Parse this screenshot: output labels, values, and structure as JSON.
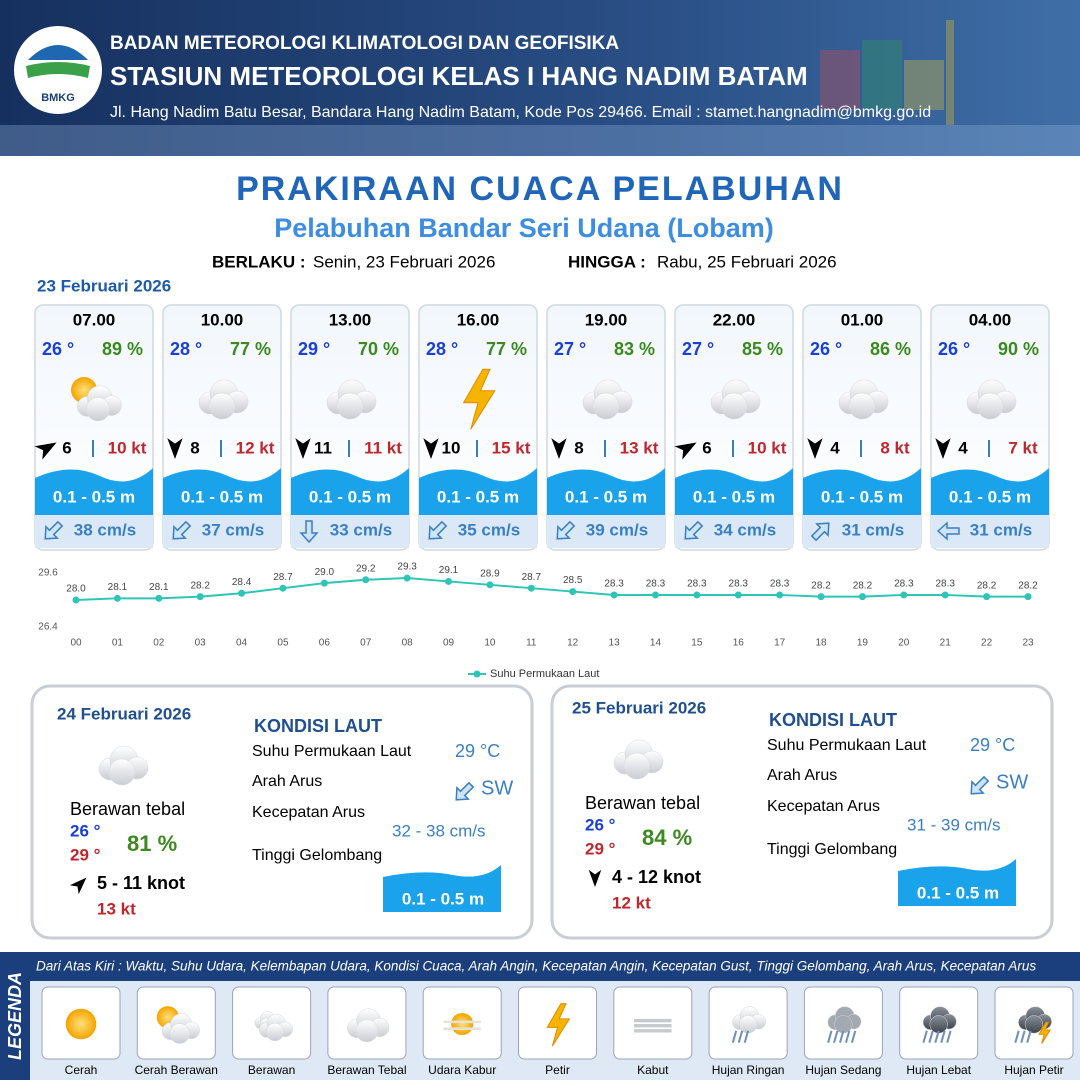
{
  "header": {
    "logo_text": "BMKG",
    "org": "BADAN METEOROLOGI KLIMATOLOGI DAN GEOFISIKA",
    "station": "STASIUN METEOROLOGI KELAS I HANG NADIM BATAM",
    "address": "Jl. Hang Nadim Batu Besar, Bandara Hang Nadim Batam, Kode Pos 29466. Email : stamet.hangnadim@bmkg.go.id"
  },
  "title": "PRAKIRAAN CUACA PELABUHAN",
  "subtitle": "Pelabuhan Bandar Seri Udana (Lobam)",
  "validity": {
    "from_label": "BERLAKU :",
    "from": "Senin, 23 Februari 2026",
    "to_label": "HINGGA :",
    "to": "Rabu, 25 Februari 2026"
  },
  "date": "23 Februari 2026",
  "cards": [
    {
      "time": "07.00",
      "temp": "26 °",
      "humidity": "89 %",
      "wind": "6",
      "gust": "10 kt",
      "wave": "0.1 - 0.5 m",
      "current": "38 cm/s"
    },
    {
      "time": "10.00",
      "temp": "28 °",
      "humidity": "77 %",
      "wind": "8",
      "gust": "12 kt",
      "wave": "0.1 - 0.5 m",
      "current": "37 cm/s"
    },
    {
      "time": "13.00",
      "temp": "29 °",
      "humidity": "70 %",
      "wind": "11",
      "gust": "11 kt",
      "wave": "0.1 - 0.5 m",
      "current": "33 cm/s"
    },
    {
      "time": "16.00",
      "temp": "28 °",
      "humidity": "77 %",
      "wind": "10",
      "gust": "15 kt",
      "wave": "0.1 - 0.5 m",
      "current": "35 cm/s"
    },
    {
      "time": "19.00",
      "temp": "27 °",
      "humidity": "83 %",
      "wind": "8",
      "gust": "13 kt",
      "wave": "0.1 - 0.5 m",
      "current": "39 cm/s"
    },
    {
      "time": "22.00",
      "temp": "27 °",
      "humidity": "85 %",
      "wind": "6",
      "gust": "10 kt",
      "wave": "0.1 - 0.5 m",
      "current": "34 cm/s"
    },
    {
      "time": "01.00",
      "temp": "26 °",
      "humidity": "86 %",
      "wind": "4",
      "gust": "8 kt",
      "wave": "0.1 - 0.5 m",
      "current": "31 cm/s"
    },
    {
      "time": "04.00",
      "temp": "26 °",
      "humidity": "90 %",
      "wind": "4",
      "gust": "7 kt",
      "wave": "0.1 - 0.5 m",
      "current": "31 cm/s"
    }
  ],
  "chart_data": {
    "type": "line",
    "categories": [
      "00",
      "01",
      "02",
      "03",
      "04",
      "05",
      "06",
      "07",
      "08",
      "09",
      "10",
      "11",
      "12",
      "13",
      "14",
      "15",
      "16",
      "17",
      "18",
      "19",
      "20",
      "21",
      "22",
      "23"
    ],
    "series": [
      {
        "name": "Suhu Permukaan Laut",
        "color": "#2ec4b6",
        "values": [
          28.0,
          28.1,
          28.1,
          28.2,
          28.4,
          28.7,
          29.0,
          29.2,
          29.3,
          29.1,
          28.9,
          28.7,
          28.5,
          28.3,
          28.3,
          28.3,
          28.3,
          28.3,
          28.2,
          28.2,
          28.3,
          28.3,
          28.2,
          28.2
        ],
        "value_labels": [
          "28.0",
          "28.1",
          "28.1",
          "28.2",
          "28.4",
          "28.7",
          "29.0",
          "29.2",
          "29.3",
          "29.1",
          "28.9",
          "28.7",
          "28.5",
          "28.3",
          "28.3",
          "28.3",
          "28.3",
          "28.3",
          "28.2",
          "28.2",
          "28.3",
          "28.3",
          "28.2",
          "28.2"
        ]
      }
    ],
    "ylim": [
      26.4,
      29.6
    ],
    "yticks": [
      26.4,
      29.6
    ]
  },
  "days": [
    {
      "date": "24 Februari 2026",
      "condition": "Berawan tebal",
      "temp_min": "26 °",
      "temp_max": "29 °",
      "humidity": "81 %",
      "wind": "5  - 11 knot",
      "gust": "13 kt",
      "sea_heading": "KONDISI LAUT",
      "labels": [
        "Suhu Permukaan Laut",
        "Arah Arus",
        "Kecepatan Arus",
        "Tinggi Gelombang"
      ],
      "sst": "29 °C",
      "current_dir": "SW",
      "current_speed": "32  - 38 cm/s",
      "wave": "0.1 - 0.5 m"
    },
    {
      "date": "25 Februari 2026",
      "condition": "Berawan tebal",
      "temp_min": "26 °",
      "temp_max": "29 °",
      "humidity": "84 %",
      "wind": "4  - 12 knot",
      "gust": "12 kt",
      "sea_heading": "KONDISI LAUT",
      "labels": [
        "Suhu Permukaan Laut",
        "Arah Arus",
        "Kecepatan Arus",
        "Tinggi Gelombang"
      ],
      "sst": "29 °C",
      "current_dir": "SW",
      "current_speed": "31  - 39 cm/s",
      "wave": "0.1 - 0.5 m"
    }
  ],
  "legend": {
    "title": "LEGENDA",
    "description": "Dari Atas Kiri : Waktu, Suhu Udara, Kelembapan Udara, Kondisi Cuaca, Arah Angin, Kecepatan Angin, Kecepatan Gust, Tinggi Gelombang, Arah Arus, Kecepatan Arus",
    "items": [
      "Cerah",
      "Cerah Berawan",
      "Berawan",
      "Berawan Tebal",
      "Udara Kabur",
      "Petir",
      "Kabut",
      "Hujan Ringan",
      "Hujan Sedang",
      "Hujan Lebat",
      "Hujan Petir"
    ]
  }
}
